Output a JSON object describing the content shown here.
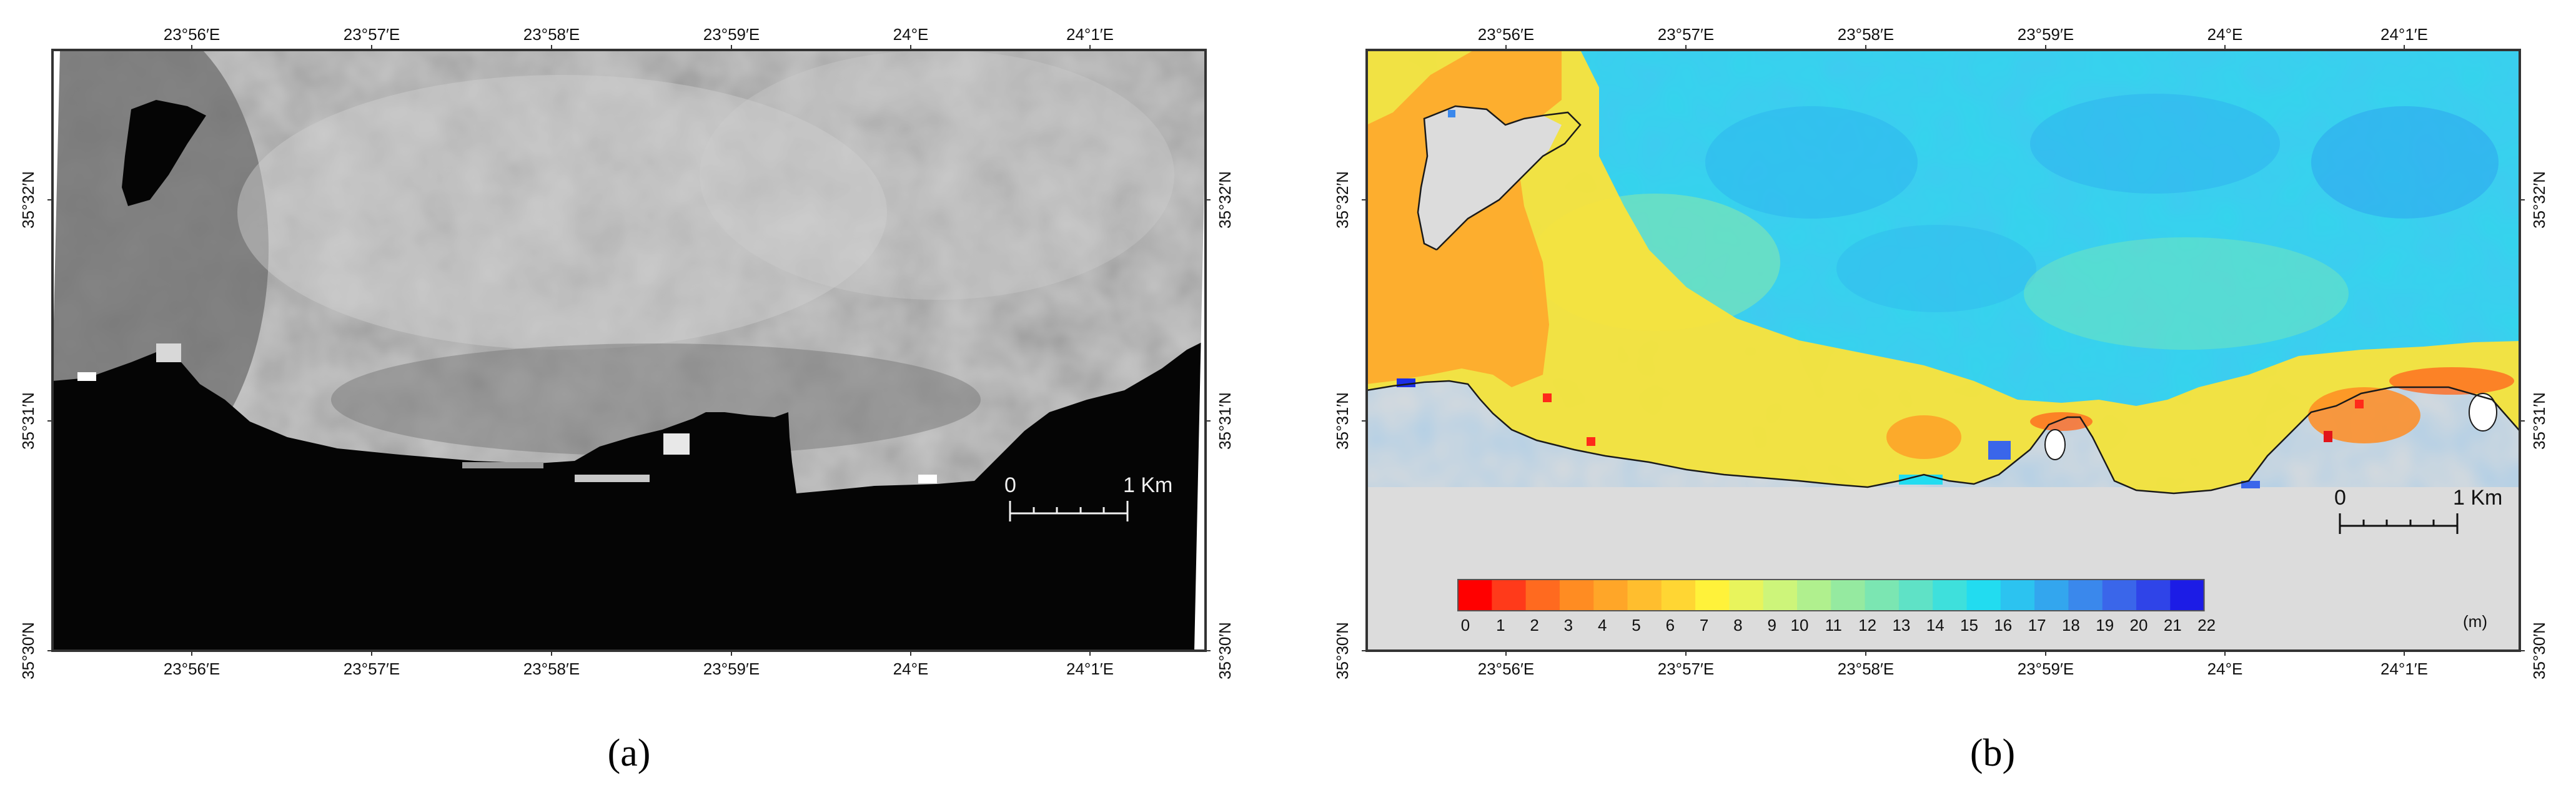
{
  "panels": [
    {
      "id": "a",
      "caption": "(a)",
      "lon_labels": [
        "23°56′E",
        "23°57′E",
        "23°58′E",
        "23°59′E",
        "24°E",
        "24°1′E"
      ],
      "lat_labels": [
        "35°32′N",
        "35°31′N",
        "35°30′N"
      ],
      "scale_bar": {
        "start": "0",
        "end": "1 Km"
      },
      "colors": {
        "land": "#050505",
        "sea_light": "#c8c8c8",
        "sea_mid": "#a6a6a6",
        "sea_dark": "#7a7a7a"
      }
    },
    {
      "id": "b",
      "caption": "(b)",
      "lon_labels": [
        "23°56′E",
        "23°57′E",
        "23°58′E",
        "23°59′E",
        "24°E",
        "24°1′E"
      ],
      "lat_labels": [
        "35°32′N",
        "35°31′N",
        "35°30′N"
      ],
      "scale_bar": {
        "start": "0",
        "end": "1 Km"
      },
      "colors": {
        "land": "#dcdcdc",
        "shallow": "#f6e23a",
        "deep": "#2fd3ea",
        "coastline": "#1a1a1a"
      }
    }
  ],
  "legend": {
    "unit": "(m)",
    "ticks": [
      "0",
      "1",
      "2",
      "3",
      "4",
      "5",
      "6",
      "7",
      "8",
      "9",
      "10",
      "11",
      "12",
      "13",
      "14",
      "15",
      "16",
      "17",
      "18",
      "19",
      "20",
      "21",
      "22"
    ],
    "colors": [
      "#ff0000",
      "#ff3a1a",
      "#ff6a1f",
      "#ff8c22",
      "#ffa628",
      "#ffbe2e",
      "#ffd633",
      "#fff23a",
      "#e8f45c",
      "#cdf57a",
      "#b0f08e",
      "#95eaa0",
      "#7be6b2",
      "#5fe2c6",
      "#3ee0dc",
      "#22dcf0",
      "#2cc3f0",
      "#33a6ee",
      "#3a88ec",
      "#3a66ea",
      "#2f44e8",
      "#1c1ce6"
    ]
  }
}
